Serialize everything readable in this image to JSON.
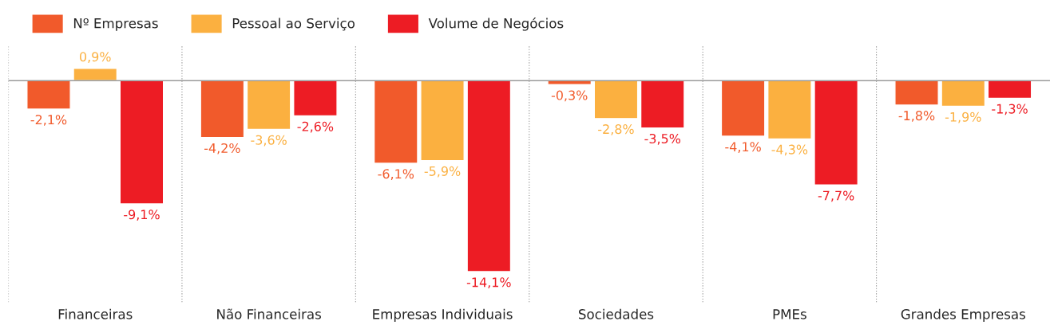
{
  "chart_data": {
    "type": "bar",
    "categories": [
      "Financeiras",
      "Não Financeiras",
      "Empresas Individuais",
      "Sociedades",
      "PMEs",
      "Grandes Empresas"
    ],
    "series": [
      {
        "name": "Nº Empresas",
        "color": "#f15a2b",
        "values": [
          -2.1,
          -4.2,
          -6.1,
          -0.3,
          -4.1,
          -1.8
        ],
        "value_labels": [
          "-2,1%",
          "-4,2%",
          "-6,1%",
          "-0,3%",
          "-4,1%",
          "-1,8%"
        ]
      },
      {
        "name": "Pessoal ao Serviço",
        "color": "#fbb040",
        "values": [
          0.9,
          -3.6,
          -5.9,
          -2.8,
          -4.3,
          -1.9
        ],
        "value_labels": [
          "0,9%",
          "-3,6%",
          "-5,9%",
          "-2,8%",
          "-4,3%",
          "-1,9%"
        ]
      },
      {
        "name": "Volume de Negócios",
        "color": "#ed1c24",
        "values": [
          -9.1,
          -2.6,
          -14.1,
          -3.5,
          -7.7,
          -1.3
        ],
        "value_labels": [
          "-9,1%",
          "-2,6%",
          "-14,1%",
          "-3,5%",
          "-7,7%",
          "-1,3%"
        ]
      }
    ],
    "legend": "top left",
    "grid": false
  }
}
